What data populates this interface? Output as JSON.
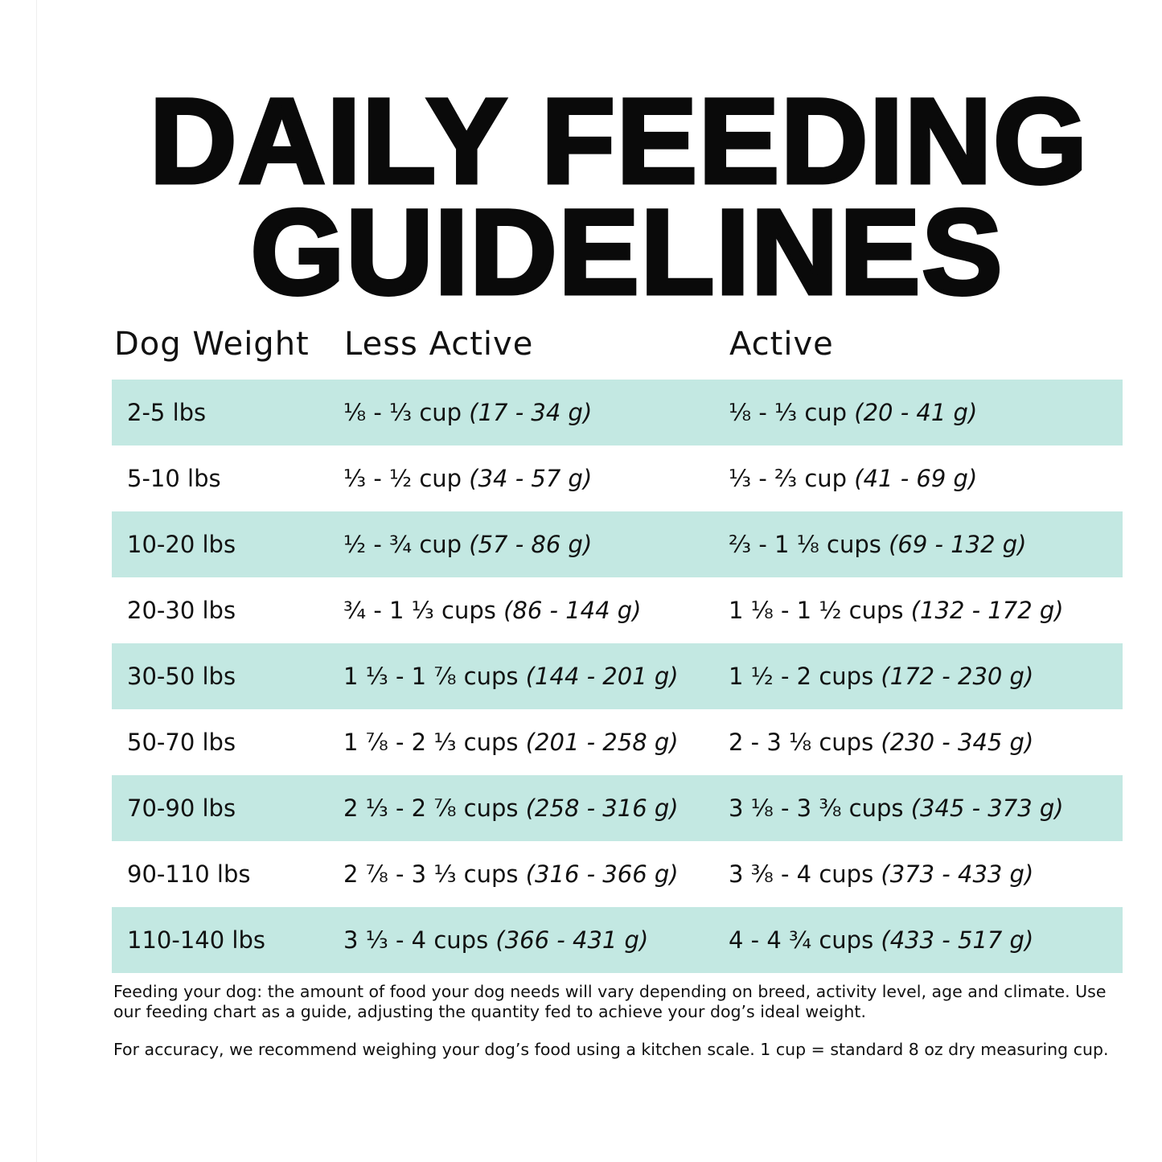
{
  "title": {
    "line1": "DAILY FEEDING",
    "line2": "GUIDELINES"
  },
  "columns": [
    "Dog Weight",
    "Less Active",
    "Active"
  ],
  "row_color": "#c3e8e2",
  "rows": [
    {
      "weight": "2-5 lbs",
      "less_active": {
        "cups": "⅛ - ⅓ cup",
        "grams": "(17 - 34 g)"
      },
      "active": {
        "cups": "⅛ - ⅓ cup",
        "grams": "(20 - 41 g)"
      }
    },
    {
      "weight": "5-10 lbs",
      "less_active": {
        "cups": "⅓ - ½ cup",
        "grams": "(34 - 57 g)"
      },
      "active": {
        "cups": "⅓ - ⅔ cup",
        "grams": "(41 - 69 g)"
      }
    },
    {
      "weight": "10-20 lbs",
      "less_active": {
        "cups": "½ - ¾ cup",
        "grams": "(57 - 86 g)"
      },
      "active": {
        "cups": "⅔ - 1 ⅛ cups",
        "grams": "(69 - 132 g)"
      }
    },
    {
      "weight": "20-30 lbs",
      "less_active": {
        "cups": "¾ - 1 ⅓ cups",
        "grams": "(86 - 144 g)"
      },
      "active": {
        "cups": "1 ⅛ - 1 ½ cups",
        "grams": "(132 - 172 g)"
      }
    },
    {
      "weight": "30-50 lbs",
      "less_active": {
        "cups": "1 ⅓ - 1 ⅞ cups",
        "grams": "(144 - 201 g)"
      },
      "active": {
        "cups": "1 ½ - 2 cups",
        "grams": "(172 - 230 g)"
      }
    },
    {
      "weight": "50-70 lbs",
      "less_active": {
        "cups": "1 ⅞ - 2 ⅓ cups",
        "grams": "(201 - 258 g)"
      },
      "active": {
        "cups": "2 - 3 ⅛ cups",
        "grams": "(230 - 345 g)"
      }
    },
    {
      "weight": "70-90 lbs",
      "less_active": {
        "cups": "2 ⅓ - 2 ⅞ cups",
        "grams": "(258 - 316 g)"
      },
      "active": {
        "cups": "3 ⅛ - 3 ⅜ cups",
        "grams": "(345 - 373 g)"
      }
    },
    {
      "weight": "90-110 lbs",
      "less_active": {
        "cups": "2 ⅞ - 3 ⅓ cups",
        "grams": "(316 - 366 g)"
      },
      "active": {
        "cups": "3 ⅜ - 4 cups",
        "grams": "(373 - 433 g)"
      }
    },
    {
      "weight": "110-140 lbs",
      "less_active": {
        "cups": "3 ⅓ - 4 cups",
        "grams": "(366 - 431 g)"
      },
      "active": {
        "cups": "4 - 4 ¾ cups",
        "grams": "(433 - 517 g)"
      }
    }
  ],
  "notes": [
    "Feeding your dog: the amount of food your dog needs will vary depending on breed, activity level, age and climate. Use our feeding chart as a guide, adjusting the quantity fed to achieve your dog’s ideal weight.",
    "For accuracy, we recommend weighing your dog’s food using a kitchen scale. 1 cup = standard 8 oz dry measuring cup."
  ]
}
